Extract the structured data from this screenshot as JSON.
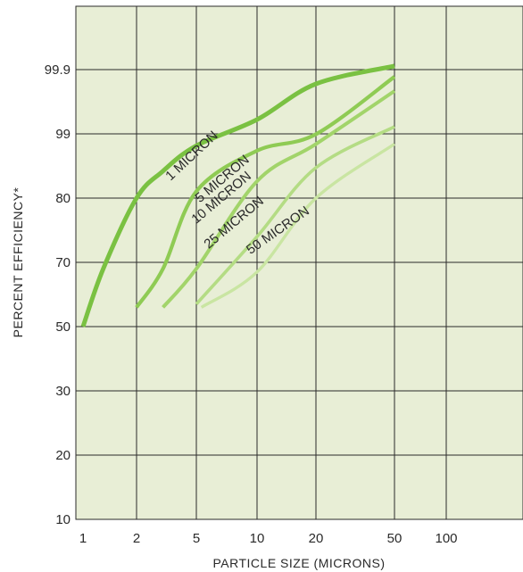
{
  "chart_data": {
    "type": "line",
    "title": "",
    "xlabel": "PARTICLE SIZE (MICRONS)",
    "ylabel": "PERCENT EFFICIENCY*",
    "x_scale": "log",
    "x_ticks": [
      "1",
      "2",
      "5",
      "10",
      "20",
      "50",
      "100"
    ],
    "y_ticks": [
      "10",
      "20",
      "30",
      "50",
      "70",
      "80",
      "99",
      "99.9"
    ],
    "grid": true,
    "legend": "none",
    "colors": {
      "plot_background": "#e8eed6",
      "grid": "#2a2a2a",
      "series": [
        "#7ac142",
        "#8fcb54",
        "#a2d46a",
        "#b4dc84",
        "#c9e5a2"
      ]
    },
    "series": [
      {
        "name": "1 MICRON",
        "x": [
          1,
          1.3,
          2,
          3,
          5,
          10,
          20,
          50
        ],
        "y": [
          50,
          68,
          80,
          88,
          95.5,
          99.2,
          99.7,
          99.95
        ]
      },
      {
        "name": "5 MICRON",
        "x": [
          2,
          3,
          5,
          10,
          20,
          50
        ],
        "y": [
          56,
          68,
          82,
          94,
          98.9,
          99.8
        ]
      },
      {
        "name": "10 MICRON",
        "x": [
          3,
          5,
          10,
          20,
          50
        ],
        "y": [
          56,
          68,
          85,
          96,
          99.6
        ]
      },
      {
        "name": "25 MICRON",
        "x": [
          5,
          10,
          20,
          50
        ],
        "y": [
          57,
          74,
          89,
          99.1
        ]
      },
      {
        "name": "50 MICRON",
        "x": [
          5.3,
          10,
          20,
          50
        ],
        "y": [
          56,
          67,
          80,
          96
        ]
      }
    ]
  }
}
